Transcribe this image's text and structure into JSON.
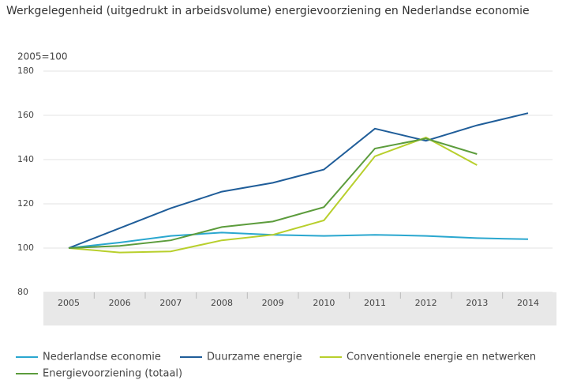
{
  "chart_data": {
    "type": "line",
    "title": "Werkgelegenheid (uitgedrukt in arbeidsvolume) energievoorziening en Nederlandse economie",
    "y_axis_label": "2005=100",
    "categories": [
      "2005",
      "2006",
      "2007",
      "2008",
      "2009",
      "2010",
      "2011",
      "2012",
      "2013",
      "2014"
    ],
    "series": [
      {
        "name": "Nederlandse economie",
        "color": "#2aa7cf",
        "values": [
          100,
          102.5,
          105.5,
          107,
          106,
          105.5,
          106,
          105.5,
          104.5,
          104
        ]
      },
      {
        "name": "Duurzame energie",
        "color": "#1f5d99",
        "values": [
          100,
          109,
          118,
          125.5,
          129.5,
          135.5,
          154,
          148.5,
          155.5,
          161
        ]
      },
      {
        "name": "Conventionele energie en netwerken",
        "color": "#b8cf2c",
        "values": [
          100,
          98,
          98.5,
          103.5,
          106,
          112.5,
          141.5,
          150,
          137.5,
          null
        ]
      },
      {
        "name": "Energievoorziening (totaal)",
        "color": "#5c9c3c",
        "values": [
          100,
          101,
          103.5,
          109.5,
          112,
          118.5,
          145,
          149.5,
          142.5,
          null
        ]
      }
    ],
    "ylim": [
      80,
      180
    ],
    "yticks": [
      80,
      100,
      120,
      140,
      160,
      180
    ],
    "grid": true
  }
}
